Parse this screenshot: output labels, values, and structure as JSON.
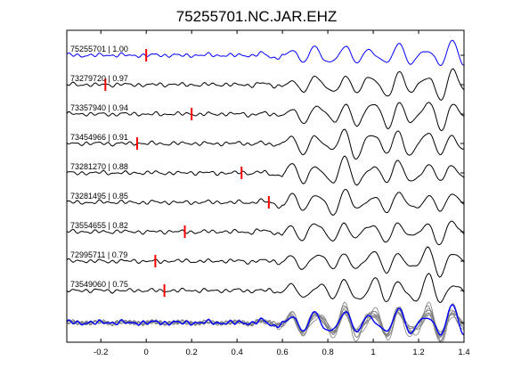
{
  "chart_data": {
    "type": "line",
    "title": "75255701.NC.JAR.EHZ",
    "xlabel": "",
    "ylabel": "",
    "xlim": [
      -0.35,
      1.4
    ],
    "x_ticks": [
      -0.2,
      0,
      0.2,
      0.4,
      0.6,
      0.8,
      1,
      1.2,
      1.4
    ],
    "x_tick_labels": [
      "-0.2",
      "0",
      "0.2",
      "0.4",
      "0.6",
      "0.8",
      "1",
      "1.2",
      "1.4"
    ],
    "grid": false,
    "series": [
      {
        "label": "75255701 | 1.00",
        "id": "75255701",
        "cc": 1.0,
        "pick_time": 0.0,
        "color": "#0000ff"
      },
      {
        "label": "73279720 | 0.97",
        "id": "73279720",
        "cc": 0.97,
        "pick_time": -0.18,
        "color": "#000000"
      },
      {
        "label": "73357940 | 0.94",
        "id": "73357940",
        "cc": 0.94,
        "pick_time": 0.2,
        "color": "#000000"
      },
      {
        "label": "73454966 | 0.91",
        "id": "73454966",
        "cc": 0.91,
        "pick_time": -0.04,
        "color": "#000000"
      },
      {
        "label": "73281270 | 0.88",
        "id": "73281270",
        "cc": 0.88,
        "pick_time": 0.42,
        "color": "#000000"
      },
      {
        "label": "73281495 | 0.85",
        "id": "73281495",
        "cc": 0.85,
        "pick_time": 0.54,
        "color": "#000000"
      },
      {
        "label": "73554655 | 0.82",
        "id": "73554655",
        "cc": 0.82,
        "pick_time": 0.17,
        "color": "#000000"
      },
      {
        "label": "72995711 | 0.79",
        "id": "72995711",
        "cc": 0.79,
        "pick_time": 0.04,
        "color": "#000000"
      },
      {
        "label": "73549060 | 0.75",
        "id": "73549060",
        "cc": 0.75,
        "pick_time": 0.08,
        "color": "#000000"
      }
    ],
    "stack": {
      "overlay_color": "#808080",
      "reference_color": "#0000ff"
    },
    "pick_color": "#ff0000"
  }
}
